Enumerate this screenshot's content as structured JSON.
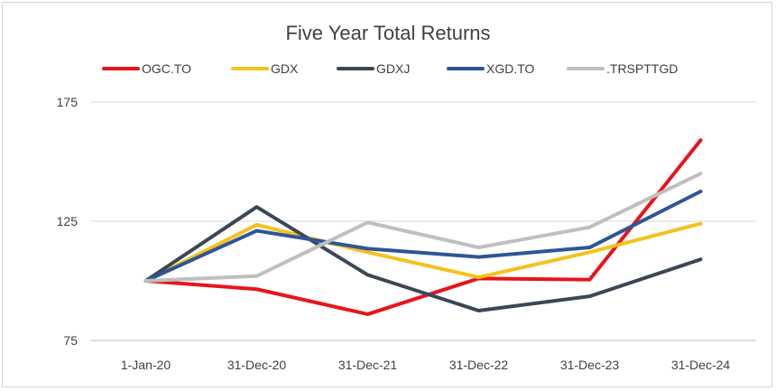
{
  "chart_data": {
    "type": "line",
    "title": "Five Year Total Returns",
    "xlabel": "",
    "ylabel": "",
    "categories": [
      "1-Jan-20",
      "31-Dec-20",
      "31-Dec-21",
      "31-Dec-22",
      "31-Dec-23",
      "31-Dec-24"
    ],
    "ylim": [
      75,
      175
    ],
    "yticks": [
      75,
      125,
      175
    ],
    "grid": true,
    "legend": "top",
    "series": [
      {
        "name": "OGC.TO",
        "color": "#e8141b",
        "values": [
          100,
          96.5,
          86,
          101,
          100.5,
          159
        ]
      },
      {
        "name": "GDX",
        "color": "#f5c21b",
        "values": [
          100,
          123.5,
          112,
          101.5,
          112,
          124
        ]
      },
      {
        "name": "GDXJ",
        "color": "#3b4656",
        "values": [
          100,
          131,
          102.5,
          87.5,
          93.5,
          109
        ]
      },
      {
        "name": "XGD.TO",
        "color": "#2f5597",
        "values": [
          100,
          121,
          113.5,
          110,
          114,
          137.5
        ]
      },
      {
        "name": ".TRSPTTGD",
        "color": "#bfbfbf",
        "values": [
          100,
          102,
          124.5,
          114,
          122.5,
          145
        ]
      }
    ]
  }
}
